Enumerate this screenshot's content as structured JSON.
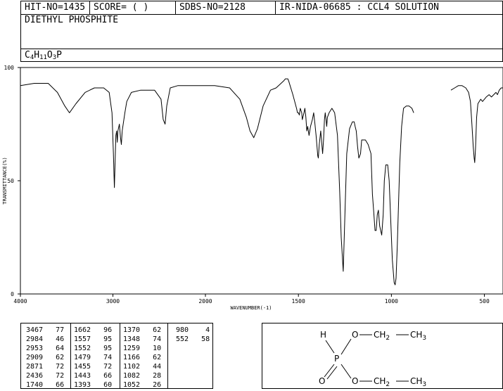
{
  "header": {
    "hit_no": "HIT-NO=1435",
    "score": "SCORE=  (   )",
    "sdbs_no": "SDBS-NO=2128",
    "ir_info": "IR-NIDA-06685 : CCL4 SOLUTION",
    "compound_name": "DIETHYL PHOSPHITE",
    "formula_parts": [
      "C",
      "4",
      "H",
      "11",
      "O",
      "3",
      "P"
    ]
  },
  "chart_data": {
    "type": "line",
    "title": "",
    "xlabel": "WAVENUMBER(-1)",
    "ylabel": "TRANSMITTANCE(%)",
    "xlim": [
      4000,
      400
    ],
    "ylim": [
      0,
      100
    ],
    "x_ticks": [
      "4000",
      "3000",
      "2000",
      "1500",
      "1000",
      "500"
    ],
    "y_ticks": [
      "0",
      "50",
      "100"
    ],
    "series": [
      {
        "segments": [
          [
            [
              4000,
              92
            ],
            [
              3850,
              93
            ],
            [
              3700,
              93
            ],
            [
              3600,
              89
            ],
            [
              3520,
              83
            ],
            [
              3470,
              80
            ],
            [
              3400,
              84
            ],
            [
              3300,
              89
            ],
            [
              3200,
              91
            ],
            [
              3100,
              91
            ],
            [
              3040,
              89
            ],
            [
              3010,
              80
            ],
            [
              2995,
              62
            ],
            [
              2988,
              52
            ],
            [
              2984,
              47
            ],
            [
              2978,
              56
            ],
            [
              2968,
              70
            ],
            [
              2960,
              72
            ],
            [
              2953,
              67
            ],
            [
              2946,
              72
            ],
            [
              2930,
              75
            ],
            [
              2918,
              69
            ],
            [
              2909,
              66
            ],
            [
              2900,
              72
            ],
            [
              2885,
              76
            ],
            [
              2871,
              80
            ],
            [
              2850,
              85
            ],
            [
              2800,
              89
            ],
            [
              2700,
              90
            ],
            [
              2550,
              90
            ],
            [
              2480,
              86
            ],
            [
              2456,
              77
            ],
            [
              2436,
              75
            ],
            [
              2418,
              83
            ],
            [
              2380,
              91
            ],
            [
              2300,
              92
            ],
            [
              2100,
              92
            ],
            [
              1950,
              92
            ],
            [
              1870,
              91
            ],
            [
              1815,
              86
            ],
            [
              1780,
              78
            ],
            [
              1760,
              72
            ],
            [
              1740,
              69
            ],
            [
              1720,
              73
            ],
            [
              1690,
              83
            ],
            [
              1650,
              90
            ],
            [
              1620,
              91
            ],
            [
              1580,
              94
            ],
            [
              1570,
              95
            ],
            [
              1557,
              95
            ],
            [
              1552,
              94
            ],
            [
              1530,
              88
            ],
            [
              1510,
              82
            ],
            [
              1505,
              80
            ],
            [
              1500,
              80
            ],
            [
              1495,
              79
            ],
            [
              1490,
              82
            ],
            [
              1482,
              80
            ],
            [
              1479,
              77
            ],
            [
              1470,
              80
            ],
            [
              1465,
              82
            ],
            [
              1460,
              78
            ],
            [
              1455,
              72
            ],
            [
              1450,
              74
            ],
            [
              1443,
              70
            ],
            [
              1435,
              74
            ],
            [
              1425,
              77
            ],
            [
              1418,
              80
            ],
            [
              1411,
              75
            ],
            [
              1405,
              70
            ],
            [
              1396,
              61
            ],
            [
              1393,
              60
            ],
            [
              1388,
              66
            ],
            [
              1380,
              72
            ],
            [
              1370,
              62
            ],
            [
              1365,
              68
            ],
            [
              1360,
              77
            ],
            [
              1356,
              80
            ],
            [
              1350,
              76
            ],
            [
              1348,
              74
            ],
            [
              1344,
              78
            ],
            [
              1335,
              80
            ],
            [
              1320,
              82
            ],
            [
              1305,
              80
            ],
            [
              1290,
              70
            ],
            [
              1278,
              45
            ],
            [
              1270,
              25
            ],
            [
              1259,
              10
            ],
            [
              1252,
              30
            ],
            [
              1240,
              62
            ],
            [
              1225,
              73
            ],
            [
              1210,
              76
            ],
            [
              1200,
              76
            ],
            [
              1195,
              74
            ],
            [
              1189,
              72
            ],
            [
              1182,
              65
            ],
            [
              1175,
              60
            ],
            [
              1166,
              62
            ],
            [
              1160,
              68
            ],
            [
              1152,
              68
            ],
            [
              1140,
              68
            ],
            [
              1125,
              66
            ],
            [
              1110,
              62
            ],
            [
              1102,
              44
            ],
            [
              1095,
              36
            ],
            [
              1088,
              28
            ],
            [
              1082,
              28
            ],
            [
              1076,
              35
            ],
            [
              1070,
              37
            ],
            [
              1063,
              30
            ],
            [
              1052,
              26
            ],
            [
              1044,
              35
            ],
            [
              1038,
              50
            ],
            [
              1030,
              57
            ],
            [
              1020,
              57
            ],
            [
              1012,
              50
            ],
            [
              1005,
              35
            ],
            [
              995,
              15
            ],
            [
              985,
              5
            ],
            [
              980,
              4
            ],
            [
              975,
              7
            ],
            [
              968,
              22
            ],
            [
              960,
              45
            ],
            [
              955,
              58
            ],
            [
              945,
              74
            ],
            [
              935,
              82
            ],
            [
              920,
              83
            ],
            [
              905,
              83
            ],
            [
              890,
              82
            ],
            [
              880,
              80
            ]
          ],
          [
            [
              680,
              90
            ],
            [
              660,
              91
            ],
            [
              640,
              92
            ],
            [
              620,
              92
            ],
            [
              600,
              91
            ],
            [
              585,
              89
            ],
            [
              575,
              85
            ],
            [
              568,
              76
            ],
            [
              560,
              65
            ],
            [
              555,
              60
            ],
            [
              552,
              58
            ],
            [
              548,
              64
            ],
            [
              542,
              78
            ],
            [
              535,
              84
            ],
            [
              520,
              86
            ],
            [
              510,
              85
            ],
            [
              500,
              86
            ],
            [
              490,
              87
            ],
            [
              475,
              88
            ],
            [
              462,
              87
            ],
            [
              450,
              88
            ],
            [
              438,
              89
            ],
            [
              430,
              88
            ],
            [
              420,
              90
            ],
            [
              410,
              91
            ],
            [
              400,
              91
            ]
          ]
        ]
      }
    ],
    "peak_table": [
      [
        "3467",
        "77"
      ],
      [
        "2984",
        "46"
      ],
      [
        "2953",
        "64"
      ],
      [
        "2909",
        "62"
      ],
      [
        "2871",
        "72"
      ],
      [
        "2436",
        "72"
      ],
      [
        "1740",
        "66"
      ],
      [
        "1662",
        "96"
      ],
      [
        "1557",
        "95"
      ],
      [
        "1552",
        "95"
      ],
      [
        "1479",
        "74"
      ],
      [
        "1455",
        "72"
      ],
      [
        "1443",
        "66"
      ],
      [
        "1393",
        "60"
      ],
      [
        "1370",
        "62"
      ],
      [
        "1348",
        "74"
      ],
      [
        "1259",
        "10"
      ],
      [
        "1166",
        "62"
      ],
      [
        "1102",
        "44"
      ],
      [
        "1082",
        "28"
      ],
      [
        "1052",
        "26"
      ],
      [
        "980",
        "4"
      ],
      [
        "552",
        "58"
      ]
    ]
  },
  "structure": {
    "atoms": {
      "H": "H",
      "P": "P",
      "O_double": "O",
      "O_top": "O",
      "O_bottom": "O",
      "CH2_top": [
        "CH",
        "2"
      ],
      "CH3_top": [
        "CH",
        "3"
      ],
      "CH2_bottom": [
        "CH",
        "2"
      ],
      "CH3_bottom": [
        "CH",
        "3"
      ]
    }
  }
}
